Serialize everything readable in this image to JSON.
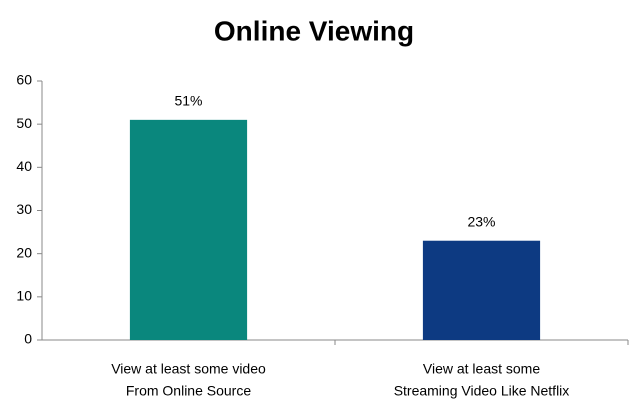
{
  "chart_data": {
    "type": "bar",
    "title": "Online Viewing",
    "categories": [
      [
        "View at least some video",
        "From Online Source"
      ],
      [
        "View at least some",
        "Streaming Video Like Netflix"
      ]
    ],
    "values": [
      51,
      23
    ],
    "value_labels": [
      "51%",
      "23%"
    ],
    "colors": [
      "#0a877d",
      "#0d3a82"
    ],
    "ylim": [
      0,
      60
    ],
    "yticks": [
      0,
      10,
      20,
      30,
      40,
      50,
      60
    ],
    "grid": false
  }
}
